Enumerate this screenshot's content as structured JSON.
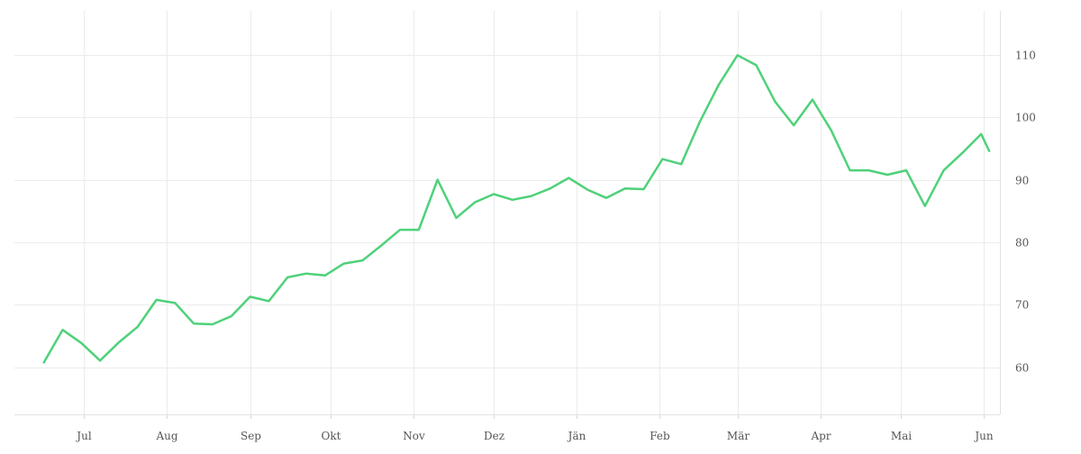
{
  "chart_data": {
    "type": "line",
    "title": "",
    "xlabel": "",
    "ylabel": "",
    "grid": true,
    "legend": "none",
    "x_tick_labels": [
      "Jul",
      "Aug",
      "Sep",
      "Okt",
      "Nov",
      "Dez",
      "Jän",
      "Feb",
      "Mär",
      "Apr",
      "Mai",
      "Jun"
    ],
    "y_ticks": [
      60,
      70,
      80,
      90,
      100,
      110
    ],
    "ylim": [
      52.5,
      117
    ],
    "xlim": [
      "2023-06-05",
      "2024-06-07"
    ],
    "x_tick_dates": [
      "2023-07-01",
      "2023-08-01",
      "2023-09-01",
      "2023-10-01",
      "2023-11-01",
      "2023-12-01",
      "2024-01-01",
      "2024-02-01",
      "2024-03-01",
      "2024-04-01",
      "2024-05-01",
      "2024-06-01"
    ],
    "colors": {
      "series": "#4fd17a"
    },
    "series": [
      {
        "x": [
          "2023-06-16",
          "2023-06-23",
          "2023-06-30",
          "2023-07-07",
          "2023-07-14",
          "2023-07-21",
          "2023-07-28",
          "2023-08-04",
          "2023-08-11",
          "2023-08-18",
          "2023-08-25",
          "2023-09-01",
          "2023-09-08",
          "2023-09-15",
          "2023-09-22",
          "2023-09-29",
          "2023-10-06",
          "2023-10-13",
          "2023-10-20",
          "2023-10-27",
          "2023-11-03",
          "2023-11-10",
          "2023-11-17",
          "2023-11-24",
          "2023-12-01",
          "2023-12-08",
          "2023-12-15",
          "2023-12-22",
          "2023-12-29",
          "2024-01-05",
          "2024-01-12",
          "2024-01-19",
          "2024-01-26",
          "2024-02-02",
          "2024-02-09",
          "2024-02-16",
          "2024-02-23",
          "2024-03-01",
          "2024-03-08",
          "2024-03-15",
          "2024-03-22",
          "2024-03-29",
          "2024-04-05",
          "2024-04-12",
          "2024-04-19",
          "2024-04-26",
          "2024-05-03",
          "2024-05-10",
          "2024-05-17",
          "2024-05-24",
          "2024-05-31",
          "2024-06-03"
        ],
        "values": [
          60.8,
          66.0,
          63.9,
          61.1,
          64.0,
          66.5,
          70.8,
          70.3,
          67.0,
          66.9,
          68.2,
          71.3,
          70.6,
          74.4,
          75.0,
          74.7,
          76.6,
          77.1,
          79.5,
          82.0,
          82.0,
          90.0,
          83.9,
          86.4,
          87.7,
          86.8,
          87.4,
          88.6,
          90.3,
          88.4,
          87.1,
          88.6,
          88.5,
          93.3,
          92.5,
          99.3,
          105.2,
          109.9,
          108.3,
          102.5,
          98.7,
          102.8,
          97.9,
          91.5,
          91.5,
          90.8,
          91.5,
          85.8,
          91.5,
          94.3,
          97.3,
          94.6
        ]
      }
    ]
  }
}
